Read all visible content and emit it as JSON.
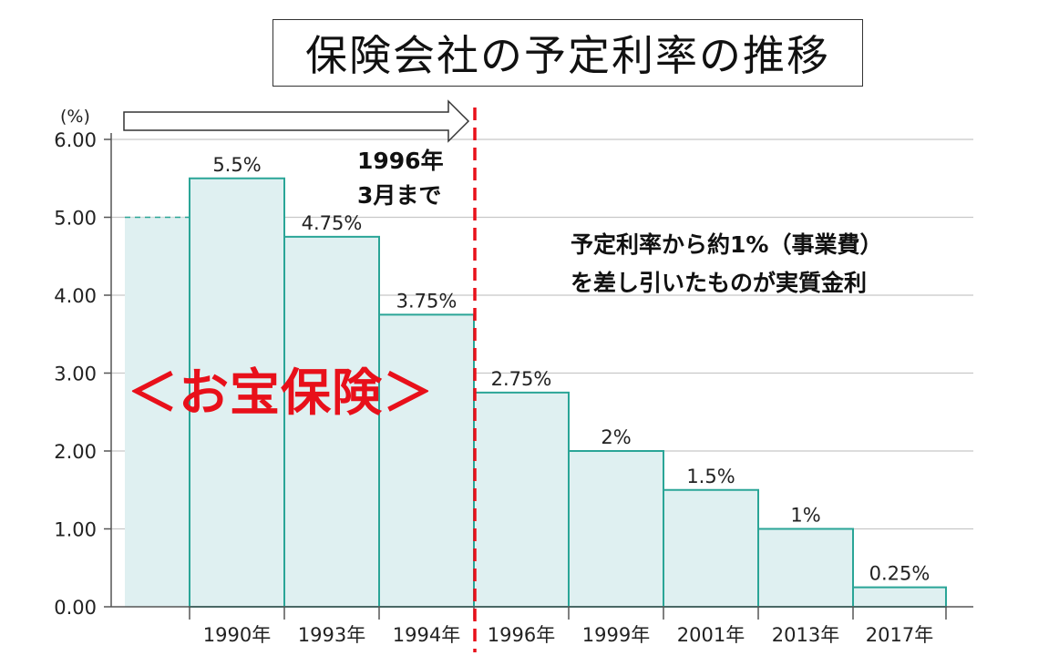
{
  "chart_data": {
    "type": "bar",
    "title": "保険会社の予定利率の推移",
    "ylabel": "(%)",
    "xlabel": "",
    "ylim": [
      0,
      6
    ],
    "yticks": [
      "0.00",
      "1.00",
      "2.00",
      "3.00",
      "4.00",
      "5.00",
      "6.00"
    ],
    "grid": true,
    "categories": [
      "",
      "1990年",
      "1993年",
      "1994年",
      "1996年",
      "1999年",
      "2001年",
      "2013年",
      "2017年"
    ],
    "values": [
      5.0,
      5.5,
      4.75,
      3.75,
      2.75,
      2.0,
      1.5,
      1.0,
      0.25
    ],
    "data_labels": [
      "",
      "5.5%",
      "4.75%",
      "3.75%",
      "2.75%",
      "2%",
      "1.5%",
      "1%",
      "0.25%"
    ],
    "colors": {
      "fill": "#dff0f1",
      "stroke": "#2aa597",
      "grid": "#c8c8c8",
      "divider": "#e8101a"
    }
  },
  "annotations": {
    "until_line1": "1996年",
    "until_line2": "3月まで",
    "note_line1": "予定利率から約1%（事業費）",
    "note_line2": "を差し引いたものが実質金利",
    "treasure": "＜お宝保険＞"
  }
}
